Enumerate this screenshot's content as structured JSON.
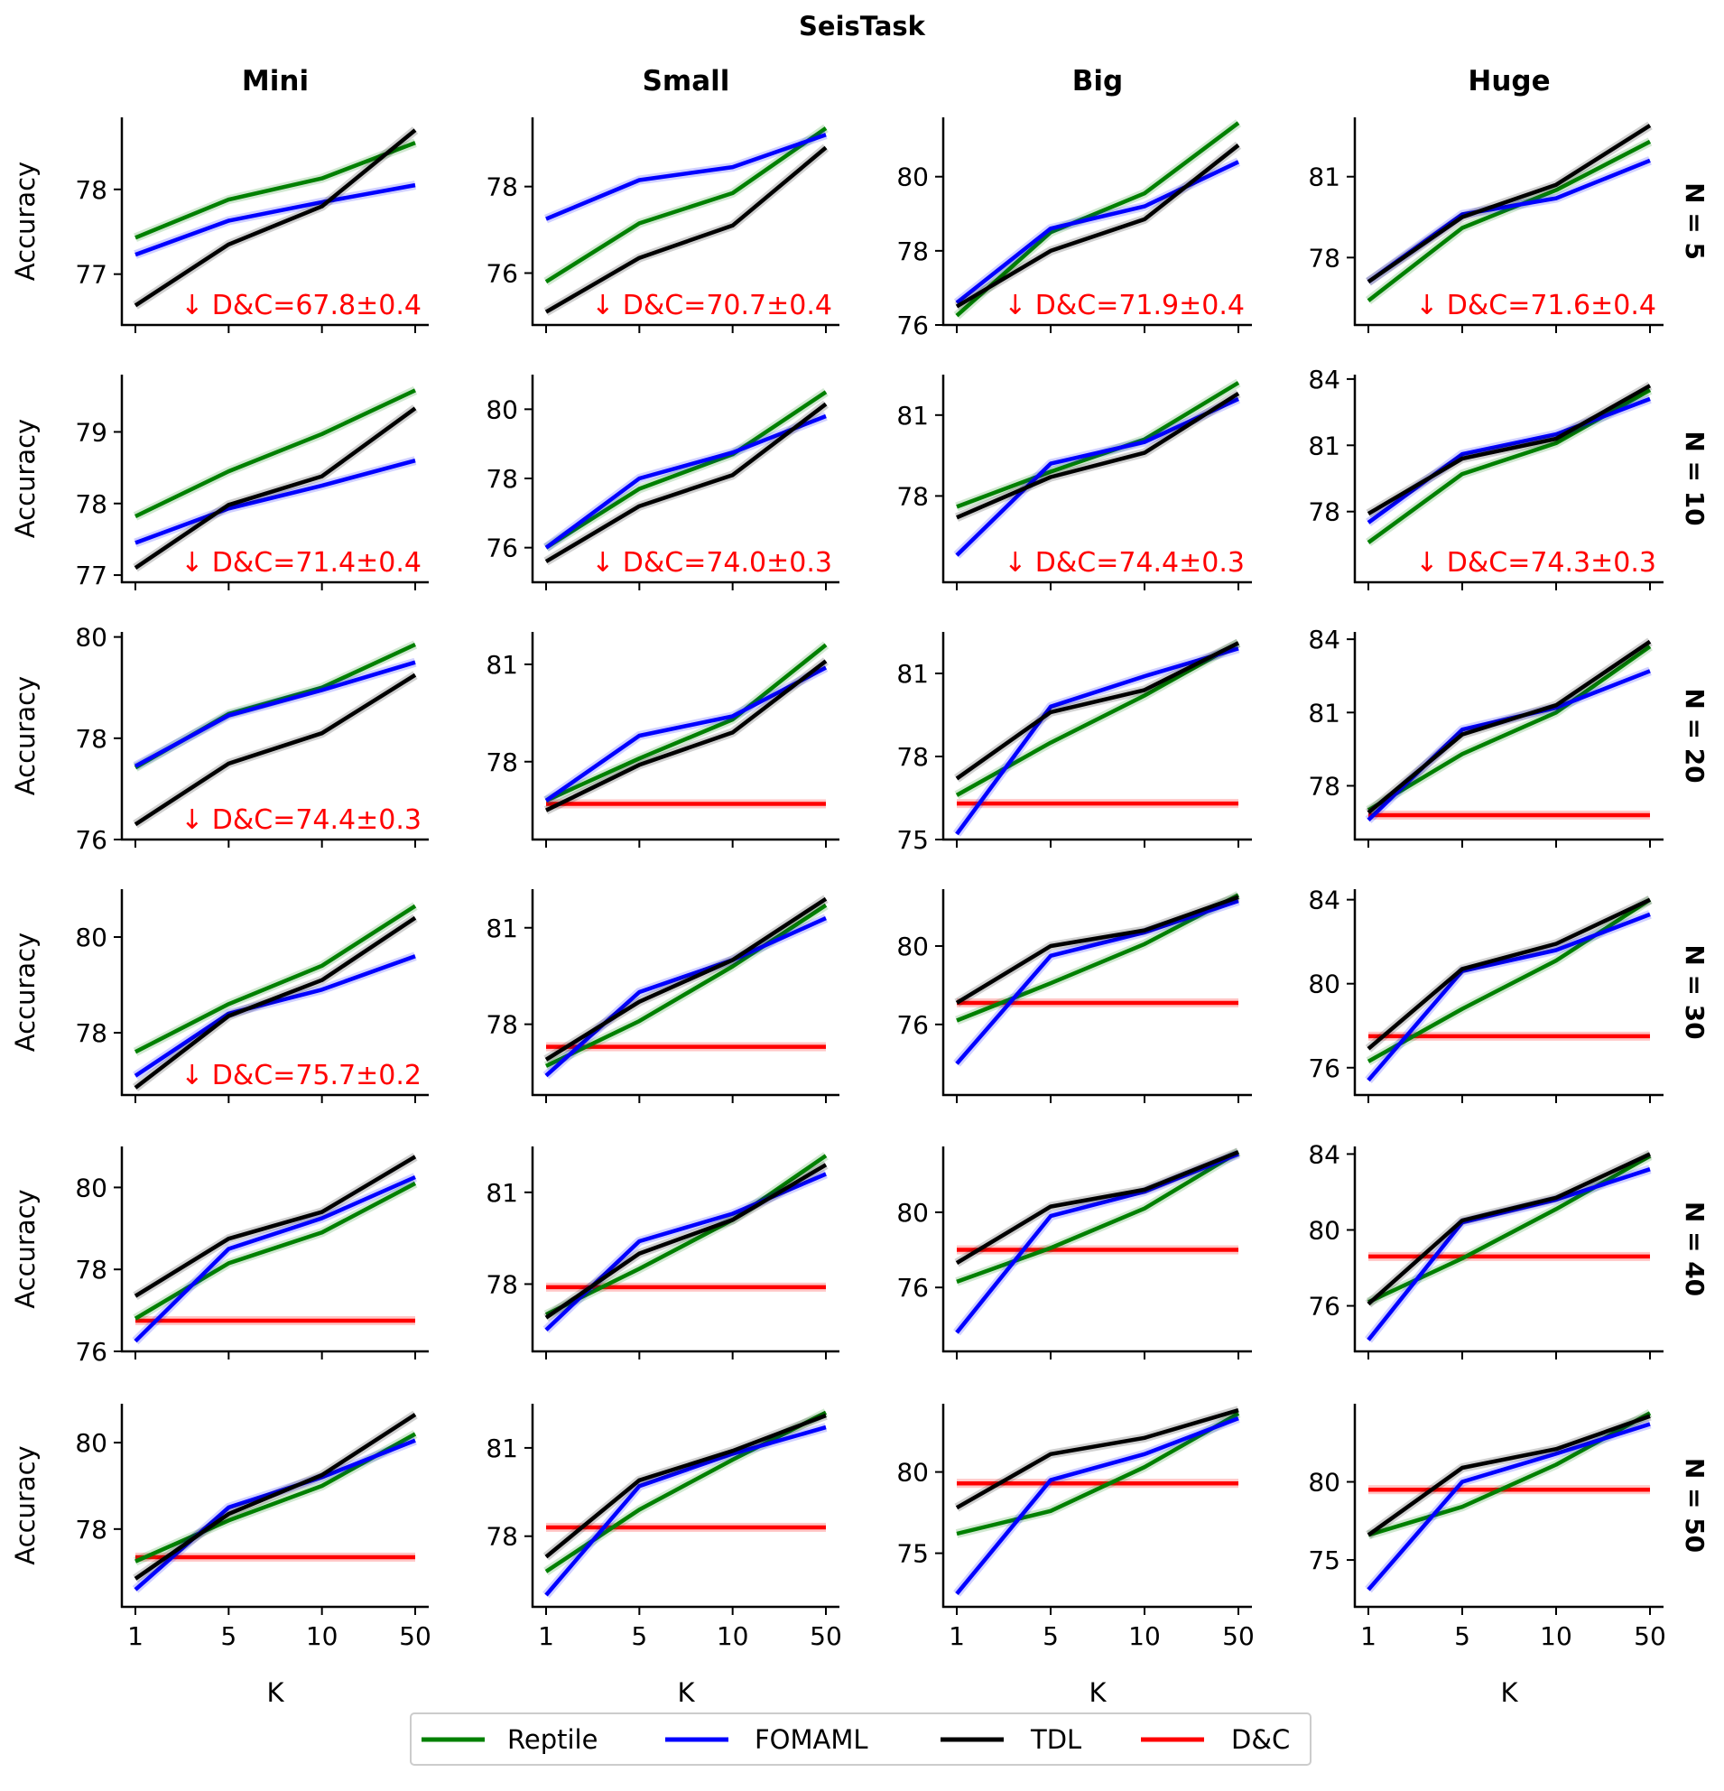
{
  "chart_data": {
    "type": "line",
    "title": "SeisTask",
    "columns": [
      "Mini",
      "Small",
      "Big",
      "Huge"
    ],
    "rows": [
      "N = 5",
      "N = 10",
      "N = 20",
      "N = 30",
      "N = 40",
      "N = 50"
    ],
    "x": [
      "1",
      "5",
      "10",
      "50"
    ],
    "xlabel": "K",
    "ylabel": "Accuracy",
    "legend": [
      "Reptile",
      "FOMAML",
      "TDL",
      "D&C"
    ],
    "legend_position": "bottom-center",
    "colors": {
      "Reptile": "#008000",
      "FOMAML": "#0000ff",
      "TDL": "#000000",
      "D&C": "#ff0000"
    },
    "panels": [
      {
        "row": 0,
        "col": 0,
        "ylim": [
          76.4,
          78.85
        ],
        "yticks": [
          "77",
          "78"
        ],
        "Reptile": [
          77.43,
          77.88,
          78.13,
          78.55
        ],
        "FOMAML": [
          77.23,
          77.63,
          77.85,
          78.05
        ],
        "TDL": [
          76.63,
          77.35,
          77.8,
          78.7
        ],
        "DC": null,
        "dc_annotation": "↓ D&C=67.8±0.4"
      },
      {
        "row": 0,
        "col": 1,
        "ylim": [
          74.8,
          79.6
        ],
        "yticks": [
          "76",
          "78"
        ],
        "Reptile": [
          75.8,
          77.15,
          77.85,
          79.35
        ],
        "FOMAML": [
          77.25,
          78.15,
          78.45,
          79.2
        ],
        "TDL": [
          75.1,
          76.35,
          77.1,
          78.9
        ],
        "DC": null,
        "dc_annotation": "↓ D&C=70.7±0.4"
      },
      {
        "row": 0,
        "col": 2,
        "ylim": [
          76,
          81.6
        ],
        "yticks": [
          "76",
          "78",
          "80"
        ],
        "Reptile": [
          76.25,
          78.5,
          79.55,
          81.45
        ],
        "FOMAML": [
          76.6,
          78.6,
          79.2,
          80.4
        ],
        "TDL": [
          76.5,
          78,
          78.85,
          80.85
        ],
        "DC": null,
        "dc_annotation": "↓ D&C=71.9±0.4"
      },
      {
        "row": 0,
        "col": 3,
        "ylim": [
          75.5,
          83.2
        ],
        "yticks": [
          "78",
          "81"
        ],
        "Reptile": [
          76.4,
          79.1,
          80.5,
          82.3
        ],
        "FOMAML": [
          77.1,
          79.6,
          80.2,
          81.6
        ],
        "TDL": [
          77.1,
          79.5,
          80.7,
          82.9
        ],
        "DC": null,
        "dc_annotation": "↓ D&C=71.6±0.4"
      },
      {
        "row": 1,
        "col": 0,
        "ylim": [
          76.9,
          79.8
        ],
        "yticks": [
          "77",
          "78",
          "79"
        ],
        "Reptile": [
          77.82,
          78.45,
          78.97,
          79.58
        ],
        "FOMAML": [
          77.45,
          77.93,
          78.25,
          78.6
        ],
        "TDL": [
          77.1,
          77.98,
          78.38,
          79.33
        ],
        "DC": null,
        "dc_annotation": "↓ D&C=71.4±0.4"
      },
      {
        "row": 1,
        "col": 1,
        "ylim": [
          75,
          81
        ],
        "yticks": [
          "76",
          "78",
          "80"
        ],
        "Reptile": [
          76,
          77.7,
          78.7,
          80.5
        ],
        "FOMAML": [
          76,
          78,
          78.75,
          79.8
        ],
        "TDL": [
          75.6,
          77.2,
          78.1,
          80.15
        ],
        "DC": null,
        "dc_annotation": "↓ D&C=74.0±0.3"
      },
      {
        "row": 1,
        "col": 2,
        "ylim": [
          74.8,
          82.5
        ],
        "yticks": [
          "78",
          "81"
        ],
        "Reptile": [
          77.6,
          78.9,
          80.1,
          82.2
        ],
        "FOMAML": [
          75.8,
          79.2,
          80,
          81.6
        ],
        "TDL": [
          77.2,
          78.7,
          79.6,
          81.8
        ],
        "DC": null,
        "dc_annotation": "↓ D&C=74.4±0.3"
      },
      {
        "row": 1,
        "col": 3,
        "ylim": [
          74.8,
          84.2
        ],
        "yticks": [
          "78",
          "81",
          "84"
        ],
        "Reptile": [
          76.6,
          79.7,
          81.1,
          83.5
        ],
        "FOMAML": [
          77.5,
          80.6,
          81.5,
          83.1
        ],
        "TDL": [
          77.9,
          80.4,
          81.3,
          83.7
        ],
        "DC": null,
        "dc_annotation": "↓ D&C=74.3±0.3"
      },
      {
        "row": 2,
        "col": 0,
        "ylim": [
          76,
          80.1
        ],
        "yticks": [
          "76",
          "78",
          "80"
        ],
        "Reptile": [
          77.42,
          78.48,
          79,
          79.85
        ],
        "FOMAML": [
          77.45,
          78.45,
          78.95,
          79.5
        ],
        "TDL": [
          76.3,
          77.5,
          78.1,
          79.25
        ],
        "DC": null,
        "dc_annotation": "↓ D&C=74.4±0.3"
      },
      {
        "row": 2,
        "col": 1,
        "ylim": [
          75.6,
          82
        ],
        "yticks": [
          "78",
          "81"
        ],
        "Reptile": [
          76.8,
          78.1,
          79.3,
          81.6
        ],
        "FOMAML": [
          76.8,
          78.8,
          79.4,
          80.9
        ],
        "TDL": [
          76.5,
          77.9,
          78.9,
          81.1
        ],
        "DC": 76.7,
        "dc_annotation": null
      },
      {
        "row": 2,
        "col": 2,
        "ylim": [
          75,
          82.5
        ],
        "yticks": [
          "75",
          "78",
          "81"
        ],
        "Reptile": [
          76.6,
          78.5,
          80.2,
          82.1
        ],
        "FOMAML": [
          75.2,
          79.8,
          80.9,
          81.9
        ],
        "TDL": [
          77.2,
          79.6,
          80.4,
          82.1
        ],
        "DC": 76.3,
        "dc_annotation": null
      },
      {
        "row": 2,
        "col": 3,
        "ylim": [
          75.8,
          84.3
        ],
        "yticks": [
          "78",
          "81",
          "84"
        ],
        "Reptile": [
          77,
          79.3,
          81,
          83.7
        ],
        "FOMAML": [
          76.6,
          80.3,
          81.2,
          82.7
        ],
        "TDL": [
          76.9,
          80.1,
          81.3,
          83.9
        ],
        "DC": 76.8,
        "dc_annotation": null
      },
      {
        "row": 3,
        "col": 0,
        "ylim": [
          76.7,
          81
        ],
        "yticks": [
          "78",
          "80"
        ],
        "Reptile": [
          77.6,
          78.6,
          79.4,
          80.65
        ],
        "FOMAML": [
          77.1,
          78.4,
          78.9,
          79.6
        ],
        "TDL": [
          76.85,
          78.35,
          79.1,
          80.4
        ],
        "DC": null,
        "dc_annotation": "↓ D&C=75.7±0.2"
      },
      {
        "row": 3,
        "col": 1,
        "ylim": [
          75.8,
          82.2
        ],
        "yticks": [
          "78",
          "81"
        ],
        "Reptile": [
          76.7,
          78.1,
          79.8,
          81.7
        ],
        "FOMAML": [
          76.4,
          79,
          80,
          81.3
        ],
        "TDL": [
          76.9,
          78.7,
          80,
          81.9
        ],
        "DC": 77.3,
        "dc_annotation": null
      },
      {
        "row": 3,
        "col": 2,
        "ylim": [
          72.4,
          82.9
        ],
        "yticks": [
          "76",
          "80"
        ],
        "Reptile": [
          76.2,
          78.1,
          80.1,
          82.6
        ],
        "FOMAML": [
          74,
          79.5,
          80.7,
          82.3
        ],
        "TDL": [
          77.1,
          80,
          80.8,
          82.5
        ],
        "DC": 77.1,
        "dc_annotation": null
      },
      {
        "row": 3,
        "col": 3,
        "ylim": [
          74.7,
          84.5
        ],
        "yticks": [
          "76",
          "80",
          "84"
        ],
        "Reptile": [
          76.3,
          78.8,
          81.1,
          84
        ],
        "FOMAML": [
          75.4,
          80.6,
          81.6,
          83.3
        ],
        "TDL": [
          76.9,
          80.7,
          81.9,
          84
        ],
        "DC": 77.5,
        "dc_annotation": null
      },
      {
        "row": 4,
        "col": 0,
        "ylim": [
          76,
          81
        ],
        "yticks": [
          "76",
          "78",
          "80"
        ],
        "Reptile": [
          76.8,
          78.15,
          78.9,
          80.1
        ],
        "FOMAML": [
          76.25,
          78.5,
          79.25,
          80.25
        ],
        "TDL": [
          77.35,
          78.75,
          79.4,
          80.75
        ],
        "DC": 76.75,
        "dc_annotation": null
      },
      {
        "row": 4,
        "col": 1,
        "ylim": [
          75.8,
          82.5
        ],
        "yticks": [
          "78",
          "81"
        ],
        "Reptile": [
          77,
          78.5,
          80.1,
          82.2
        ],
        "FOMAML": [
          76.5,
          79.4,
          80.3,
          81.6
        ],
        "TDL": [
          76.9,
          79,
          80.1,
          81.9
        ],
        "DC": 77.9,
        "dc_annotation": null
      },
      {
        "row": 4,
        "col": 2,
        "ylim": [
          72.6,
          83.5
        ],
        "yticks": [
          "76",
          "80"
        ],
        "Reptile": [
          76.3,
          78.1,
          80.2,
          83.2
        ],
        "FOMAML": [
          73.6,
          79.8,
          81.1,
          83.1
        ],
        "TDL": [
          77.3,
          80.3,
          81.2,
          83.2
        ],
        "DC": 78,
        "dc_annotation": null
      },
      {
        "row": 4,
        "col": 3,
        "ylim": [
          73.6,
          84.4
        ],
        "yticks": [
          "76",
          "80",
          "84"
        ],
        "Reptile": [
          76.2,
          78.5,
          81.1,
          83.9
        ],
        "FOMAML": [
          74.2,
          80.4,
          81.6,
          83.2
        ],
        "TDL": [
          76.1,
          80.5,
          81.7,
          84
        ],
        "DC": 78.6,
        "dc_annotation": null
      },
      {
        "row": 5,
        "col": 0,
        "ylim": [
          76.2,
          80.9
        ],
        "yticks": [
          "78",
          "80"
        ],
        "Reptile": [
          77.25,
          78.2,
          79,
          80.2
        ],
        "FOMAML": [
          76.6,
          78.5,
          79.2,
          80.05
        ],
        "TDL": [
          76.85,
          78.35,
          79.25,
          80.65
        ],
        "DC": 77.35,
        "dc_annotation": null
      },
      {
        "row": 5,
        "col": 1,
        "ylim": [
          75.6,
          82.5
        ],
        "yticks": [
          "78",
          "81"
        ],
        "Reptile": [
          76.8,
          78.9,
          80.6,
          82.2
        ],
        "FOMAML": [
          76,
          79.7,
          80.8,
          81.7
        ],
        "TDL": [
          77.3,
          79.9,
          80.9,
          82.1
        ],
        "DC": 78.3,
        "dc_annotation": null
      },
      {
        "row": 5,
        "col": 2,
        "ylim": [
          71.7,
          84.2
        ],
        "yticks": [
          "75",
          "80"
        ],
        "Reptile": [
          76.2,
          77.6,
          80.3,
          83.6
        ],
        "FOMAML": [
          72.5,
          79.5,
          81.1,
          83.3
        ],
        "TDL": [
          77.8,
          81.1,
          82.1,
          83.8
        ],
        "DC": 79.3,
        "dc_annotation": null
      },
      {
        "row": 5,
        "col": 3,
        "ylim": [
          72,
          85
        ],
        "yticks": [
          "75",
          "80"
        ],
        "Reptile": [
          76.6,
          78.4,
          81.1,
          84.4
        ],
        "FOMAML": [
          73.1,
          80,
          81.8,
          83.7
        ],
        "TDL": [
          76.6,
          80.9,
          82.1,
          84.2
        ],
        "DC": 79.5,
        "dc_annotation": null
      }
    ]
  }
}
